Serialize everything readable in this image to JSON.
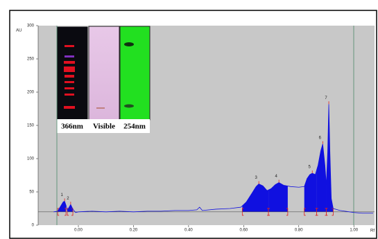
{
  "chart_data": {
    "type": "densitogram",
    "y_label": "AU",
    "x_label": "Rf",
    "xlim": [
      -0.146,
      1.075
    ],
    "ylim": [
      0,
      300
    ],
    "xticks": [
      {
        "value": 0,
        "label": "0.00"
      },
      {
        "value": 0.2,
        "label": "0.20"
      },
      {
        "value": 0.4,
        "label": "0.40"
      },
      {
        "value": 0.6,
        "label": "0.60"
      },
      {
        "value": 0.8,
        "label": "0.80"
      },
      {
        "value": 1.0,
        "label": "1.00"
      }
    ],
    "yticks": [
      0,
      50,
      100,
      150,
      200,
      250,
      300
    ],
    "baseline": 20,
    "color": "#1010e0",
    "series": [
      {
        "x": [
          -0.09,
          -0.075,
          -0.065,
          -0.055,
          -0.05,
          -0.045,
          -0.04,
          -0.035,
          -0.028,
          -0.02,
          -0.01,
          0.0,
          0.05,
          0.1,
          0.15,
          0.2,
          0.25,
          0.3,
          0.35,
          0.4,
          0.43,
          0.44,
          0.45,
          0.5,
          0.55,
          0.59,
          0.61,
          0.63,
          0.645,
          0.655,
          0.67,
          0.685,
          0.7,
          0.715,
          0.728,
          0.745,
          0.77,
          0.8,
          0.82,
          0.83,
          0.84,
          0.849,
          0.86,
          0.87,
          0.88,
          0.887,
          0.895,
          0.9,
          0.905,
          0.909,
          0.913,
          0.918,
          0.925,
          0.95,
          1.0,
          1.03,
          1.07
        ],
        "values": [
          20,
          21,
          28,
          35,
          36,
          30,
          22,
          26,
          31,
          24,
          19,
          20,
          21,
          20,
          21,
          20,
          21,
          21,
          22,
          22,
          23,
          27,
          22,
          24,
          25,
          27,
          35,
          48,
          58,
          62,
          59,
          52,
          55,
          61,
          64,
          60,
          58,
          57,
          58,
          70,
          76,
          78,
          76,
          90,
          112,
          122,
          90,
          60,
          110,
          182,
          110,
          40,
          25,
          22,
          19,
          18,
          18
        ]
      }
    ],
    "integration_ranges": [
      [
        -0.075,
        -0.045
      ],
      [
        -0.04,
        -0.02
      ],
      [
        0.595,
        0.69
      ],
      [
        0.69,
        0.76
      ],
      [
        0.82,
        0.865
      ],
      [
        0.865,
        0.9
      ],
      [
        0.9,
        0.925
      ]
    ],
    "peaks": [
      {
        "label": "1",
        "x": -0.05,
        "height": 36
      },
      {
        "label": "2",
        "x": -0.028,
        "height": 31
      },
      {
        "label": "3",
        "x": 0.655,
        "height": 62
      },
      {
        "label": "4",
        "x": 0.728,
        "height": 64
      },
      {
        "label": "5",
        "x": 0.849,
        "height": 78
      },
      {
        "label": "6",
        "x": 0.887,
        "height": 122
      },
      {
        "label": "7",
        "x": 0.909,
        "height": 182
      }
    ],
    "inset_labels": [
      "366nm",
      "Visible",
      "254nm"
    ]
  }
}
